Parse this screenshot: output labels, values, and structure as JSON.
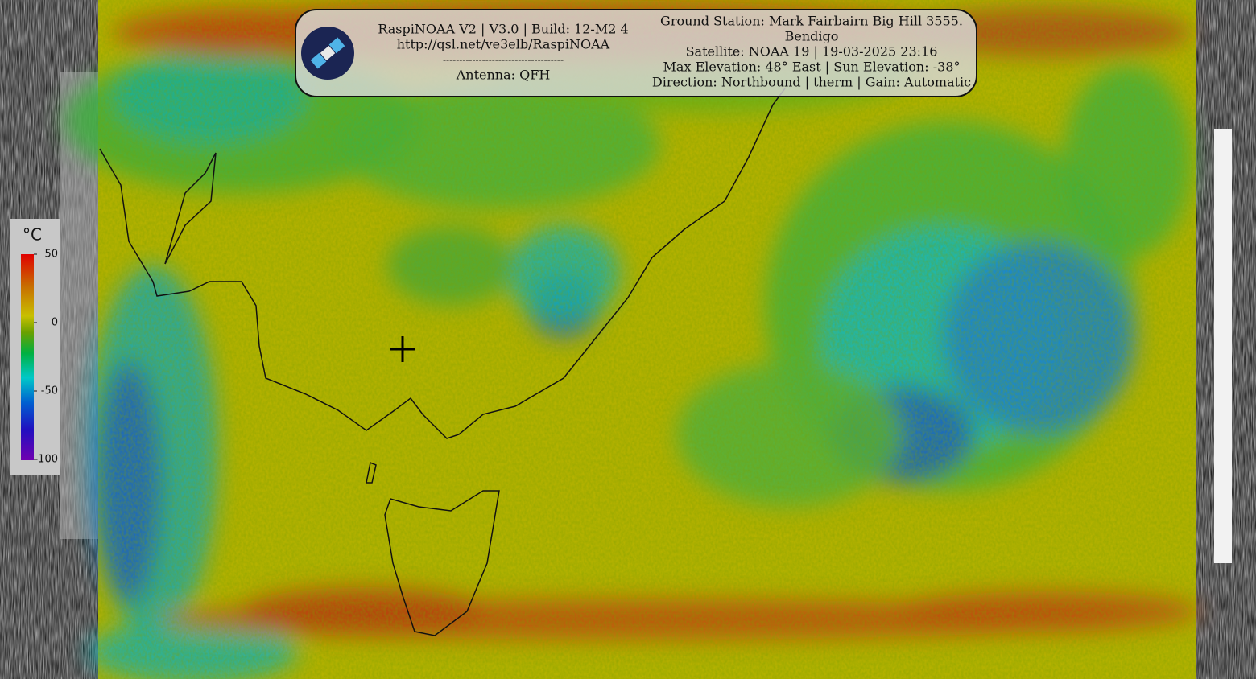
{
  "header": {
    "software": "RaspiNOAA V2 | V3.0 | Build: 12-M2 4",
    "url": "http://qsl.net/ve3elb/RaspiNOAA",
    "separator": "-------------------------------------",
    "antenna": "Antenna: QFH",
    "station": "Ground Station: Mark Fairbairn Big Hill 3555.",
    "station_city": "Bendigo",
    "satellite": "Satellite: NOAA 19 | 19-03-2025 23:16",
    "elevation": "Max Elevation: 48° East | Sun Elevation: -38°",
    "direction": "Direction: Northbound | therm | Gain: Automatic"
  },
  "legend": {
    "unit": "°C",
    "ticks": [
      50,
      0,
      -50,
      -100
    ]
  }
}
